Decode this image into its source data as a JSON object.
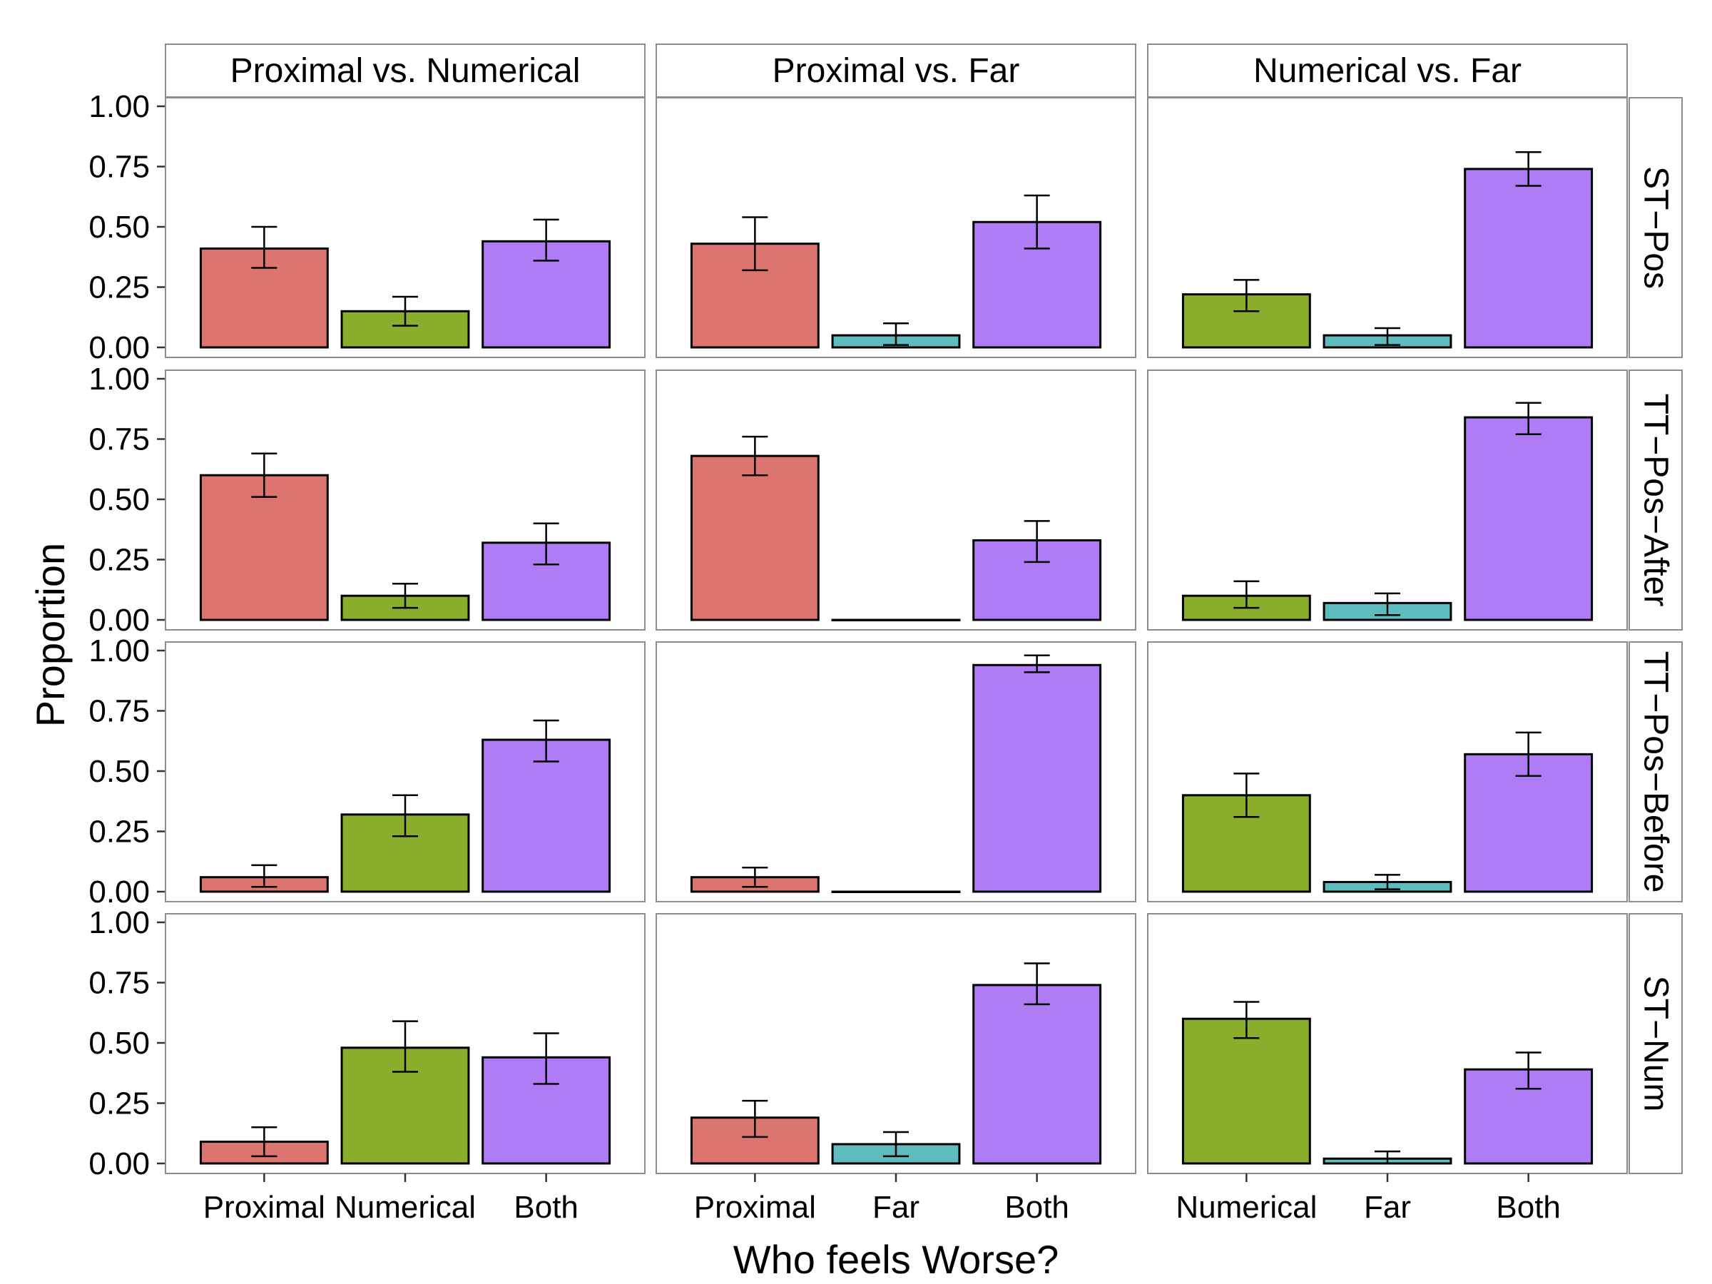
{
  "chart_data": {
    "type": "bar",
    "layout": "facet-grid",
    "xlabel": "Who feels Worse?",
    "ylabel": "Proportion",
    "ylim": [
      0,
      1
    ],
    "yticks": [
      "0.00",
      "0.25",
      "0.50",
      "0.75",
      "1.00"
    ],
    "grid": false,
    "colors": {
      "Proximal": "#dc756f",
      "Numerical": "#8aad2b",
      "Far": "#5ebcbf",
      "Both": "#b07cf5"
    },
    "columns": [
      {
        "label": "Proximal vs. Numerical",
        "categories": [
          "Proximal",
          "Numerical",
          "Both"
        ]
      },
      {
        "label": "Proximal vs. Far",
        "categories": [
          "Proximal",
          "Far",
          "Both"
        ]
      },
      {
        "label": "Numerical vs. Far",
        "categories": [
          "Numerical",
          "Far",
          "Both"
        ]
      }
    ],
    "rows": [
      {
        "label": "ST−Pos",
        "panels": [
          {
            "values": [
              0.41,
              0.15,
              0.44
            ],
            "errors": [
              [
                0.33,
                0.5
              ],
              [
                0.09,
                0.21
              ],
              [
                0.36,
                0.53
              ]
            ]
          },
          {
            "values": [
              0.43,
              0.05,
              0.52
            ],
            "errors": [
              [
                0.32,
                0.54
              ],
              [
                0.01,
                0.1
              ],
              [
                0.41,
                0.63
              ]
            ]
          },
          {
            "values": [
              0.22,
              0.05,
              0.74
            ],
            "errors": [
              [
                0.15,
                0.28
              ],
              [
                0.01,
                0.08
              ],
              [
                0.67,
                0.81
              ]
            ]
          }
        ]
      },
      {
        "label": "TT−Pos−After",
        "panels": [
          {
            "values": [
              0.6,
              0.1,
              0.32
            ],
            "errors": [
              [
                0.51,
                0.69
              ],
              [
                0.05,
                0.15
              ],
              [
                0.23,
                0.4
              ]
            ]
          },
          {
            "values": [
              0.68,
              0.0,
              0.33
            ],
            "errors": [
              [
                0.6,
                0.76
              ],
              null,
              [
                0.24,
                0.41
              ]
            ]
          },
          {
            "values": [
              0.1,
              0.07,
              0.84
            ],
            "errors": [
              [
                0.05,
                0.16
              ],
              [
                0.02,
                0.11
              ],
              [
                0.77,
                0.9
              ]
            ]
          }
        ]
      },
      {
        "label": "TT−Pos−Before",
        "panels": [
          {
            "values": [
              0.06,
              0.32,
              0.63
            ],
            "errors": [
              [
                0.02,
                0.11
              ],
              [
                0.23,
                0.4
              ],
              [
                0.54,
                0.71
              ]
            ]
          },
          {
            "values": [
              0.06,
              0.0,
              0.94
            ],
            "errors": [
              [
                0.02,
                0.1
              ],
              null,
              [
                0.91,
                0.98
              ]
            ]
          },
          {
            "values": [
              0.4,
              0.04,
              0.57
            ],
            "errors": [
              [
                0.31,
                0.49
              ],
              [
                0.01,
                0.07
              ],
              [
                0.48,
                0.66
              ]
            ]
          }
        ]
      },
      {
        "label": "ST−Num",
        "panels": [
          {
            "values": [
              0.09,
              0.48,
              0.44
            ],
            "errors": [
              [
                0.03,
                0.15
              ],
              [
                0.38,
                0.59
              ],
              [
                0.33,
                0.54
              ]
            ]
          },
          {
            "values": [
              0.19,
              0.08,
              0.74
            ],
            "errors": [
              [
                0.11,
                0.26
              ],
              [
                0.03,
                0.13
              ],
              [
                0.66,
                0.83
              ]
            ]
          },
          {
            "values": [
              0.6,
              0.02,
              0.39
            ],
            "errors": [
              [
                0.52,
                0.67
              ],
              [
                0.0,
                0.05
              ],
              [
                0.31,
                0.46
              ]
            ]
          }
        ]
      }
    ]
  }
}
